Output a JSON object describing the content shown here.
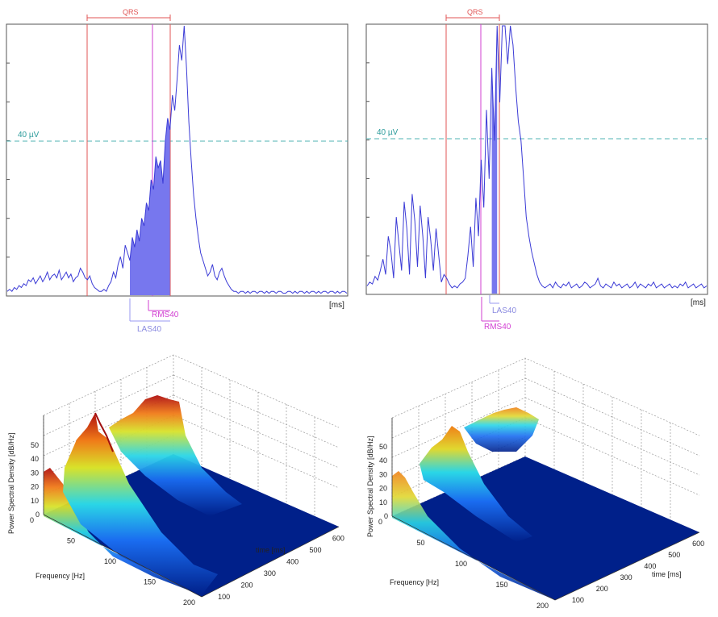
{
  "chart_data": [
    {
      "type": "line",
      "panel": "top-left",
      "xlabel": "[ms]",
      "threshold_label": "40 µV",
      "annotations": {
        "qrs": "QRS",
        "las": "LAS40",
        "rms": "RMS40"
      },
      "colors": {
        "signal": "#3b3bd6",
        "fill": "#7777ee",
        "qrs": "#e05555",
        "rms": "#d23fd2",
        "las": "#9a9af0",
        "threshold": "#4fb3b3"
      },
      "signal": [
        2,
        3,
        2,
        4,
        3,
        5,
        4,
        6,
        5,
        8,
        7,
        9,
        6,
        8,
        10,
        7,
        9,
        12,
        8,
        10,
        11,
        9,
        13,
        8,
        10,
        12,
        9,
        11,
        7,
        9,
        10,
        14,
        12,
        9,
        8,
        10,
        6,
        4,
        3,
        2,
        2,
        3,
        2,
        5,
        7,
        12,
        9,
        16,
        20,
        14,
        26,
        22,
        18,
        30,
        25,
        34,
        28,
        40,
        36,
        48,
        44,
        60,
        55,
        72,
        66,
        70,
        58,
        80,
        92,
        86,
        104,
        96,
        112,
        130,
        122,
        140,
        118,
        90,
        70,
        52,
        40,
        30,
        22,
        18,
        14,
        10,
        12,
        16,
        10,
        8,
        12,
        14,
        10,
        7,
        5,
        3,
        2,
        2,
        1,
        2,
        2,
        1,
        2,
        1,
        2,
        2,
        1,
        2,
        2,
        1,
        2,
        1,
        2,
        2,
        1,
        2,
        2,
        1,
        1,
        2,
        2,
        1,
        2,
        1,
        2,
        2,
        1,
        2,
        1,
        2,
        2,
        1,
        2,
        1,
        2,
        2,
        1,
        2,
        2,
        1,
        2,
        1,
        2,
        2,
        1
      ]
    },
    {
      "type": "line",
      "panel": "top-right",
      "xlabel": "[ms]",
      "threshold_label": "40 µV",
      "annotations": {
        "qrs": "QRS",
        "las": "LAS40",
        "rms": "RMS40"
      },
      "colors": {
        "signal": "#3b3bd6",
        "fill": "#7777ee",
        "qrs": "#e05555",
        "rms": "#d23fd2",
        "las": "#9a9af0",
        "threshold": "#4fb3b3"
      },
      "signal": [
        4,
        6,
        5,
        9,
        7,
        12,
        18,
        10,
        30,
        22,
        8,
        40,
        26,
        12,
        48,
        34,
        10,
        52,
        38,
        14,
        46,
        30,
        8,
        40,
        28,
        12,
        34,
        20,
        6,
        10,
        8,
        5,
        3,
        4,
        3,
        5,
        6,
        8,
        20,
        35,
        14,
        50,
        30,
        70,
        45,
        96,
        60,
        118,
        80,
        140,
        100,
        150,
        140,
        120,
        150,
        130,
        108,
        90,
        80,
        60,
        40,
        30,
        22,
        16,
        10,
        6,
        4,
        3,
        4,
        5,
        3,
        6,
        4,
        3,
        5,
        4,
        6,
        3,
        4,
        5,
        3,
        4,
        6,
        5,
        3,
        4,
        5,
        8,
        4,
        3,
        5,
        4,
        3,
        6,
        4,
        5,
        3,
        4,
        5,
        3,
        4,
        6,
        3,
        5,
        4,
        3,
        5,
        4,
        6,
        3,
        4,
        5,
        3,
        4,
        5,
        3,
        4,
        3,
        5,
        4,
        6,
        3,
        4,
        5,
        3,
        4,
        5,
        3,
        4
      ]
    },
    {
      "type": "surface",
      "panel": "bottom-left",
      "xlabel": "Frequency [Hz]",
      "ylabel": "time [ms]",
      "zlabel": "Power Spectral Density [dB/Hz]",
      "xticks": [
        "0",
        "50",
        "100",
        "150",
        "200"
      ],
      "yticks": [
        "100",
        "200",
        "300",
        "400",
        "500",
        "600"
      ],
      "zticks": [
        "0",
        "10",
        "20",
        "30",
        "40",
        "50"
      ]
    },
    {
      "type": "surface",
      "panel": "bottom-right",
      "xlabel": "Frequency [Hz]",
      "ylabel": "time [ms]",
      "zlabel": "Power Spectral Density [dB/Hz]",
      "xticks": [
        "0",
        "50",
        "100",
        "150",
        "200"
      ],
      "yticks": [
        "100",
        "200",
        "300",
        "400",
        "500",
        "600"
      ],
      "zticks": [
        "0",
        "10",
        "20",
        "30",
        "40",
        "50"
      ]
    }
  ]
}
